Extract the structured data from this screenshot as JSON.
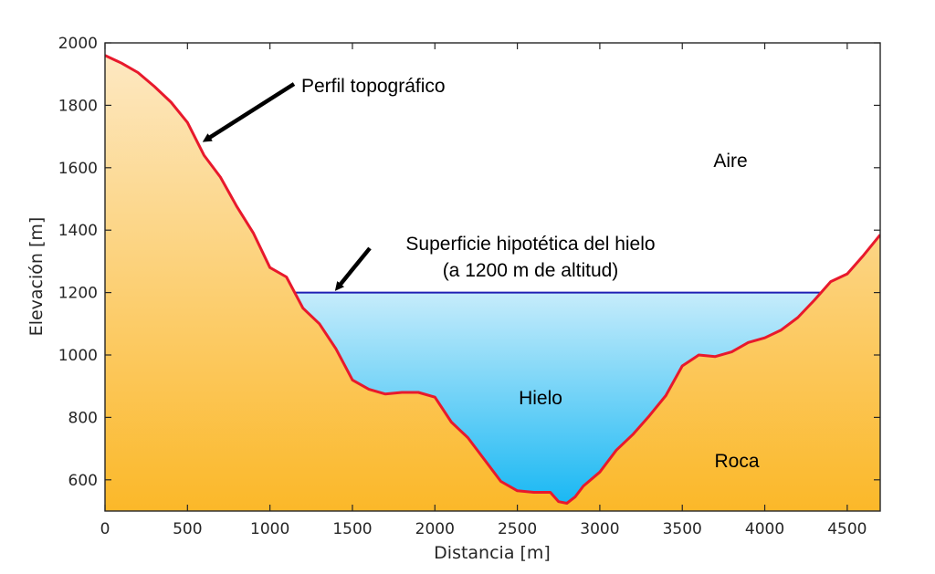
{
  "chart_data": {
    "type": "area",
    "xlabel": "Distancia [m]",
    "ylabel": "Elevación [m]",
    "xlim": [
      0,
      4700
    ],
    "ylim": [
      500,
      2000
    ],
    "xticks": [
      0,
      500,
      1000,
      1500,
      2000,
      2500,
      3000,
      3500,
      4000,
      4500
    ],
    "yticks": [
      600,
      800,
      1000,
      1200,
      1400,
      1600,
      1800,
      2000
    ],
    "grid": false,
    "series": [
      {
        "name": "Perfil topográfico",
        "x": [
          0,
          100,
          200,
          300,
          400,
          500,
          600,
          700,
          800,
          900,
          1000,
          1100,
          1200,
          1300,
          1400,
          1500,
          1600,
          1700,
          1800,
          1900,
          2000,
          2100,
          2200,
          2300,
          2400,
          2500,
          2600,
          2700,
          2750,
          2800,
          2850,
          2900,
          3000,
          3100,
          3200,
          3300,
          3400,
          3500,
          3600,
          3700,
          3800,
          3900,
          4000,
          4100,
          4200,
          4300,
          4400,
          4500,
          4600,
          4700
        ],
        "y": [
          1960,
          1935,
          1905,
          1860,
          1810,
          1745,
          1640,
          1570,
          1475,
          1390,
          1280,
          1250,
          1150,
          1100,
          1020,
          920,
          890,
          875,
          880,
          880,
          865,
          785,
          735,
          665,
          595,
          565,
          560,
          560,
          530,
          525,
          545,
          580,
          625,
          695,
          745,
          805,
          870,
          965,
          1000,
          995,
          1010,
          1040,
          1055,
          1080,
          1120,
          1175,
          1235,
          1260,
          1320,
          1385
        ]
      }
    ],
    "ice_surface_elevation": 1200,
    "annotations": [
      {
        "text": "Perfil topográfico"
      },
      {
        "text": "Superficie hipotética del hielo",
        "text2": "(a 1200 m de altitud)"
      },
      {
        "text": "Aire"
      },
      {
        "text": "Hielo"
      },
      {
        "text": "Roca"
      }
    ],
    "colors": {
      "profile_line": "#e8192c",
      "ice_line": "#1f1fb4",
      "rock_top": "#fde8c2",
      "rock_bottom": "#fbb829",
      "ice_top": "#c6ecfb",
      "ice_bottom": "#1ab8f3",
      "axes": "#262626"
    }
  }
}
